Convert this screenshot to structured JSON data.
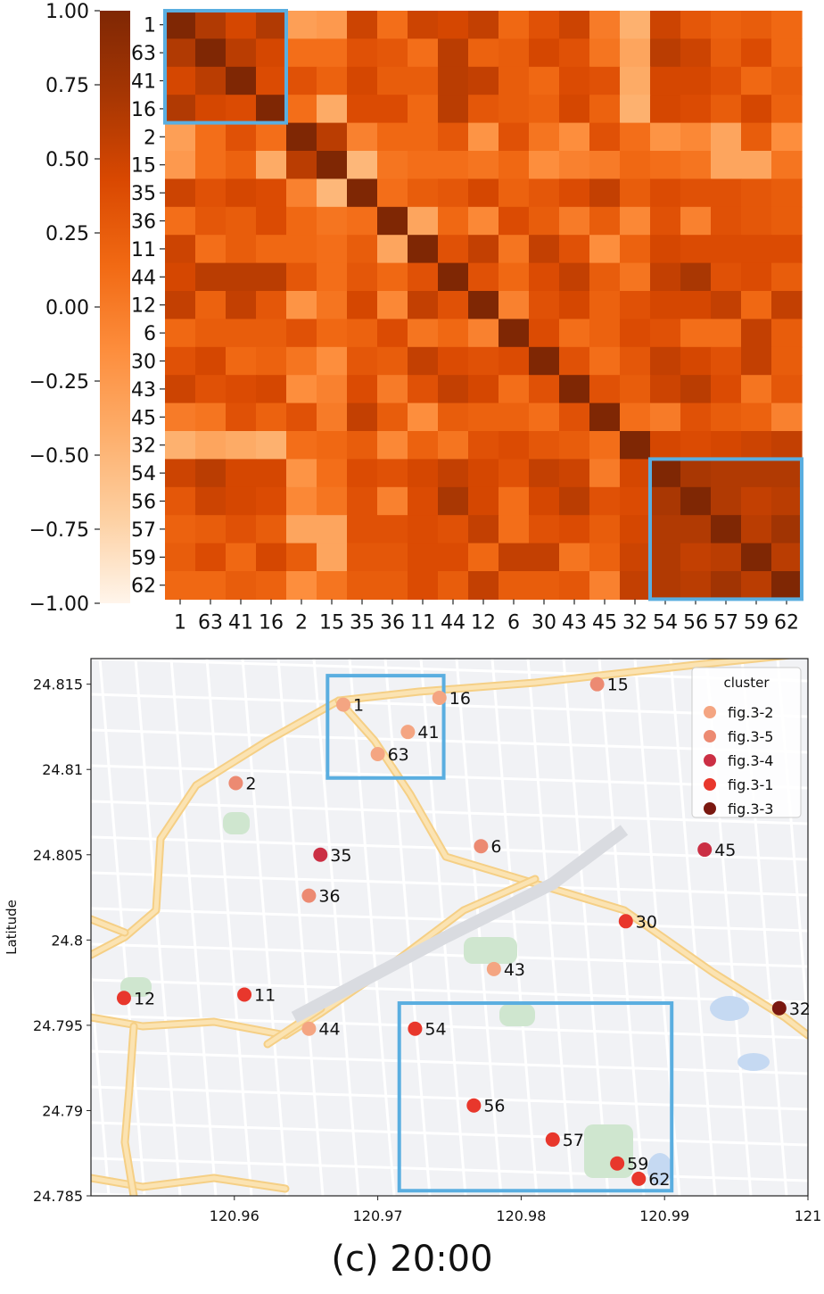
{
  "chart_data": [
    {
      "type": "heatmap",
      "row_labels": [
        "1",
        "63",
        "41",
        "16",
        "2",
        "15",
        "35",
        "36",
        "11",
        "44",
        "12",
        "6",
        "30",
        "43",
        "45",
        "32",
        "54",
        "56",
        "57",
        "59",
        "62"
      ],
      "col_labels": [
        "1",
        "63",
        "41",
        "16",
        "2",
        "15",
        "35",
        "36",
        "11",
        "44",
        "12",
        "6",
        "30",
        "43",
        "45",
        "32",
        "54",
        "56",
        "57",
        "59",
        "62"
      ],
      "values": [
        [
          1.0,
          0.65,
          0.45,
          0.65,
          -0.3,
          -0.25,
          0.5,
          0.1,
          0.5,
          0.45,
          0.55,
          0.15,
          0.35,
          0.5,
          0.0,
          -0.45,
          0.5,
          0.3,
          0.2,
          0.25,
          0.15
        ],
        [
          0.65,
          1.0,
          0.6,
          0.45,
          0.1,
          0.1,
          0.35,
          0.3,
          0.1,
          0.6,
          0.2,
          0.25,
          0.45,
          0.35,
          0.05,
          -0.35,
          0.6,
          0.5,
          0.25,
          0.4,
          0.15
        ],
        [
          0.45,
          0.6,
          1.0,
          0.4,
          0.35,
          0.2,
          0.45,
          0.25,
          0.25,
          0.6,
          0.55,
          0.25,
          0.15,
          0.4,
          0.35,
          -0.4,
          0.45,
          0.45,
          0.35,
          0.15,
          0.25
        ],
        [
          0.65,
          0.45,
          0.4,
          1.0,
          0.1,
          -0.4,
          0.4,
          0.4,
          0.15,
          0.6,
          0.3,
          0.25,
          0.2,
          0.45,
          0.2,
          -0.45,
          0.45,
          0.4,
          0.25,
          0.45,
          0.2
        ],
        [
          -0.3,
          0.1,
          0.35,
          0.1,
          1.0,
          0.6,
          -0.05,
          0.15,
          0.15,
          0.3,
          -0.2,
          0.35,
          0.05,
          -0.15,
          0.35,
          0.1,
          -0.2,
          -0.1,
          -0.35,
          0.25,
          -0.15
        ],
        [
          -0.25,
          0.1,
          0.2,
          -0.4,
          0.6,
          1.0,
          -0.5,
          0.05,
          0.1,
          0.1,
          0.05,
          0.15,
          -0.15,
          -0.05,
          0.0,
          0.15,
          0.1,
          0.05,
          -0.35,
          -0.35,
          0.05
        ],
        [
          0.5,
          0.35,
          0.45,
          0.4,
          -0.05,
          -0.5,
          1.0,
          0.1,
          0.25,
          0.3,
          0.45,
          0.2,
          0.3,
          0.4,
          0.55,
          0.25,
          0.4,
          0.35,
          0.35,
          0.3,
          0.25
        ],
        [
          0.1,
          0.3,
          0.25,
          0.4,
          0.15,
          0.05,
          0.1,
          1.0,
          -0.35,
          0.15,
          -0.1,
          0.4,
          0.25,
          0.0,
          0.25,
          -0.1,
          0.35,
          -0.05,
          0.35,
          0.3,
          0.25
        ],
        [
          0.5,
          0.1,
          0.25,
          0.15,
          0.15,
          0.1,
          0.25,
          -0.35,
          1.0,
          0.35,
          0.55,
          0.05,
          0.55,
          0.35,
          -0.15,
          0.2,
          0.45,
          0.4,
          0.4,
          0.4,
          0.4
        ],
        [
          0.45,
          0.6,
          0.6,
          0.6,
          0.3,
          0.1,
          0.3,
          0.15,
          0.35,
          1.0,
          0.35,
          0.15,
          0.4,
          0.55,
          0.25,
          0.05,
          0.55,
          0.7,
          0.35,
          0.4,
          0.25
        ],
        [
          0.55,
          0.2,
          0.55,
          0.3,
          -0.2,
          0.05,
          0.45,
          -0.1,
          0.55,
          0.35,
          1.0,
          -0.05,
          0.35,
          0.45,
          0.2,
          0.35,
          0.45,
          0.45,
          0.55,
          0.15,
          0.55
        ],
        [
          0.15,
          0.25,
          0.25,
          0.25,
          0.35,
          0.15,
          0.2,
          0.4,
          0.05,
          0.15,
          -0.05,
          1.0,
          0.4,
          0.1,
          0.2,
          0.4,
          0.35,
          0.1,
          0.1,
          0.55,
          0.25
        ],
        [
          0.35,
          0.45,
          0.15,
          0.2,
          0.05,
          -0.15,
          0.3,
          0.25,
          0.55,
          0.4,
          0.35,
          0.4,
          1.0,
          0.35,
          0.1,
          0.3,
          0.55,
          0.45,
          0.35,
          0.55,
          0.25
        ],
        [
          0.5,
          0.35,
          0.4,
          0.45,
          -0.15,
          -0.05,
          0.4,
          0.0,
          0.35,
          0.55,
          0.45,
          0.1,
          0.35,
          1.0,
          0.35,
          0.25,
          0.5,
          0.6,
          0.4,
          0.05,
          0.3
        ],
        [
          0.0,
          0.05,
          0.35,
          0.2,
          0.35,
          0.0,
          0.55,
          0.25,
          -0.15,
          0.25,
          0.2,
          0.2,
          0.1,
          0.35,
          1.0,
          0.1,
          0.0,
          0.35,
          0.25,
          0.2,
          -0.05
        ],
        [
          -0.45,
          -0.35,
          -0.4,
          -0.45,
          0.1,
          0.15,
          0.25,
          -0.1,
          0.2,
          0.05,
          0.35,
          0.4,
          0.3,
          0.25,
          0.1,
          1.0,
          0.45,
          0.4,
          0.45,
          0.5,
          0.55
        ],
        [
          0.5,
          0.6,
          0.45,
          0.45,
          -0.2,
          0.1,
          0.4,
          0.35,
          0.45,
          0.55,
          0.45,
          0.35,
          0.55,
          0.5,
          0.0,
          0.45,
          1.0,
          0.7,
          0.65,
          0.65,
          0.65
        ],
        [
          0.3,
          0.5,
          0.45,
          0.4,
          -0.1,
          0.05,
          0.35,
          -0.05,
          0.4,
          0.7,
          0.45,
          0.1,
          0.45,
          0.6,
          0.35,
          0.4,
          0.7,
          1.0,
          0.65,
          0.55,
          0.6
        ],
        [
          0.2,
          0.25,
          0.35,
          0.25,
          -0.35,
          -0.35,
          0.35,
          0.35,
          0.4,
          0.35,
          0.55,
          0.1,
          0.35,
          0.4,
          0.25,
          0.45,
          0.65,
          0.65,
          1.0,
          0.6,
          0.75
        ],
        [
          0.25,
          0.4,
          0.15,
          0.45,
          0.25,
          -0.35,
          0.3,
          0.3,
          0.4,
          0.4,
          0.15,
          0.55,
          0.55,
          0.05,
          0.2,
          0.5,
          0.65,
          0.55,
          0.6,
          1.0,
          0.6
        ],
        [
          0.15,
          0.15,
          0.25,
          0.2,
          -0.15,
          0.05,
          0.25,
          0.25,
          0.4,
          0.25,
          0.55,
          0.25,
          0.25,
          0.3,
          -0.05,
          0.55,
          0.65,
          0.6,
          0.75,
          0.6,
          1.0
        ]
      ],
      "colorbar": {
        "min": -1.0,
        "max": 1.0,
        "ticks": [
          "1.00",
          "0.75",
          "0.50",
          "0.25",
          "0.00",
          "−0.25",
          "−0.50",
          "−0.75",
          "−1.00"
        ]
      },
      "colormap": [
        "#fff5eb",
        "#fdd0a2",
        "#fdae6b",
        "#fd8d3c",
        "#f16913",
        "#d94801",
        "#a63603",
        "#7f2704"
      ],
      "highlight_color": "#5aaee0",
      "highlight_boxes": [
        {
          "row_start": 0,
          "row_end": 3,
          "col_start": 0,
          "col_end": 3
        },
        {
          "row_start": 16,
          "row_end": 20,
          "col_start": 16,
          "col_end": 20
        }
      ]
    },
    {
      "type": "scatter",
      "ylabel": "Latitude",
      "xlim": [
        120.95,
        121.0
      ],
      "ylim": [
        24.785,
        24.8165
      ],
      "x_ticks": [
        "120.96",
        "120.97",
        "120.98",
        "120.99",
        "121"
      ],
      "x_tick_values": [
        120.96,
        120.97,
        120.98,
        120.99,
        121.0
      ],
      "y_ticks": [
        "24.815",
        "24.81",
        "24.805",
        "24.8",
        "24.795",
        "24.79",
        "24.785"
      ],
      "y_tick_values": [
        24.815,
        24.81,
        24.805,
        24.8,
        24.795,
        24.79,
        24.785
      ],
      "legend": {
        "title": "cluster",
        "position": "top-right",
        "entries": [
          {
            "name": "fig.3-2",
            "color": "#f4a582"
          },
          {
            "name": "fig.3-5",
            "color": "#ec8a72"
          },
          {
            "name": "fig.3-4",
            "color": "#cb2f44"
          },
          {
            "name": "fig.3-1",
            "color": "#e8372c"
          },
          {
            "name": "fig.3-3",
            "color": "#7a1810"
          }
        ]
      },
      "points": [
        {
          "label": "1",
          "x": 120.9676,
          "y": 24.8138,
          "cluster": 0
        },
        {
          "label": "16",
          "x": 120.9743,
          "y": 24.8142,
          "cluster": 0
        },
        {
          "label": "15",
          "x": 120.9853,
          "y": 24.815,
          "cluster": 1
        },
        {
          "label": "41",
          "x": 120.9721,
          "y": 24.8122,
          "cluster": 0
        },
        {
          "label": "63",
          "x": 120.97,
          "y": 24.8109,
          "cluster": 0
        },
        {
          "label": "2",
          "x": 120.9601,
          "y": 24.8092,
          "cluster": 1
        },
        {
          "label": "6",
          "x": 120.9772,
          "y": 24.8055,
          "cluster": 1
        },
        {
          "label": "45",
          "x": 120.9928,
          "y": 24.8053,
          "cluster": 2
        },
        {
          "label": "35",
          "x": 120.966,
          "y": 24.805,
          "cluster": 2
        },
        {
          "label": "36",
          "x": 120.9652,
          "y": 24.8026,
          "cluster": 1
        },
        {
          "label": "30",
          "x": 120.9873,
          "y": 24.8011,
          "cluster": 3
        },
        {
          "label": "43",
          "x": 120.9781,
          "y": 24.7983,
          "cluster": 0
        },
        {
          "label": "12",
          "x": 120.9523,
          "y": 24.7966,
          "cluster": 3
        },
        {
          "label": "11",
          "x": 120.9607,
          "y": 24.7968,
          "cluster": 3
        },
        {
          "label": "32",
          "x": 120.998,
          "y": 24.796,
          "cluster": 4
        },
        {
          "label": "44",
          "x": 120.9652,
          "y": 24.7948,
          "cluster": 0
        },
        {
          "label": "54",
          "x": 120.9726,
          "y": 24.7948,
          "cluster": 3
        },
        {
          "label": "56",
          "x": 120.9767,
          "y": 24.7903,
          "cluster": 3
        },
        {
          "label": "57",
          "x": 120.9822,
          "y": 24.7883,
          "cluster": 3
        },
        {
          "label": "59",
          "x": 120.9867,
          "y": 24.7869,
          "cluster": 3
        },
        {
          "label": "62",
          "x": 120.9882,
          "y": 24.786,
          "cluster": 3
        }
      ],
      "highlight_color": "#5aaee0",
      "highlight_boxes": [
        {
          "x0": 120.9665,
          "x1": 120.9746,
          "y0": 24.8095,
          "y1": 24.8155
        },
        {
          "x0": 120.9715,
          "x1": 120.9905,
          "y0": 24.7853,
          "y1": 24.7963
        }
      ]
    }
  ],
  "caption": "(c) 20:00"
}
